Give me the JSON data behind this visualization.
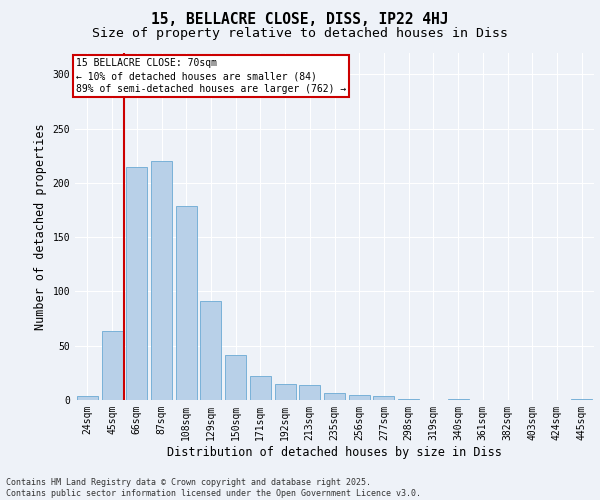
{
  "title_line1": "15, BELLACRE CLOSE, DISS, IP22 4HJ",
  "title_line2": "Size of property relative to detached houses in Diss",
  "xlabel": "Distribution of detached houses by size in Diss",
  "ylabel": "Number of detached properties",
  "categories": [
    "24sqm",
    "45sqm",
    "66sqm",
    "87sqm",
    "108sqm",
    "129sqm",
    "150sqm",
    "171sqm",
    "192sqm",
    "213sqm",
    "235sqm",
    "256sqm",
    "277sqm",
    "298sqm",
    "319sqm",
    "340sqm",
    "361sqm",
    "382sqm",
    "403sqm",
    "424sqm",
    "445sqm"
  ],
  "values": [
    4,
    64,
    215,
    220,
    179,
    91,
    41,
    22,
    15,
    14,
    6,
    5,
    4,
    1,
    0,
    1,
    0,
    0,
    0,
    0,
    1
  ],
  "bar_color": "#b8d0e8",
  "bar_edgecolor": "#6aaad4",
  "vline_color": "#cc0000",
  "annotation_text": "15 BELLACRE CLOSE: 70sqm\n← 10% of detached houses are smaller (84)\n89% of semi-detached houses are larger (762) →",
  "annotation_box_color": "#cc0000",
  "ylim": [
    0,
    320
  ],
  "yticks": [
    0,
    50,
    100,
    150,
    200,
    250,
    300
  ],
  "background_color": "#eef2f8",
  "footer_text": "Contains HM Land Registry data © Crown copyright and database right 2025.\nContains public sector information licensed under the Open Government Licence v3.0.",
  "title_fontsize": 10.5,
  "subtitle_fontsize": 9.5,
  "tick_fontsize": 7,
  "label_fontsize": 8.5,
  "footer_fontsize": 6.0
}
